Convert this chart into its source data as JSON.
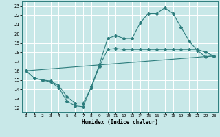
{
  "title": "",
  "xlabel": "Humidex (Indice chaleur)",
  "bg_color": "#c8e8e8",
  "line_color": "#2d7d7d",
  "grid_color": "#ffffff",
  "xlim": [
    -0.5,
    23.5
  ],
  "ylim": [
    11.5,
    23.5
  ],
  "xticks": [
    0,
    1,
    2,
    3,
    4,
    5,
    6,
    7,
    8,
    9,
    10,
    11,
    12,
    13,
    14,
    15,
    16,
    17,
    18,
    19,
    20,
    21,
    22,
    23
  ],
  "yticks": [
    12,
    13,
    14,
    15,
    16,
    17,
    18,
    19,
    20,
    21,
    22,
    23
  ],
  "line1_x": [
    0,
    1,
    2,
    3,
    4,
    5,
    6,
    7,
    8,
    9,
    10,
    11,
    12,
    13,
    14,
    15,
    16,
    17,
    18,
    19,
    20,
    21,
    22,
    23
  ],
  "line1_y": [
    16,
    15.2,
    15,
    14.8,
    14.2,
    12.7,
    12.2,
    12.1,
    14.3,
    16.7,
    19.5,
    19.8,
    19.5,
    19.5,
    21.2,
    22.2,
    22.2,
    22.8,
    22.2,
    20.7,
    19.2,
    18.2,
    17.5,
    17.6
  ],
  "line2_x": [
    0,
    1,
    2,
    3,
    4,
    5,
    6,
    7,
    8,
    9,
    10,
    11,
    12,
    13,
    14,
    15,
    16,
    17,
    18,
    19,
    20,
    21,
    22,
    23
  ],
  "line2_y": [
    16,
    15.2,
    15,
    14.9,
    14.4,
    13.2,
    12.5,
    12.5,
    14.2,
    16.5,
    18.3,
    18.4,
    18.3,
    18.3,
    18.3,
    18.3,
    18.3,
    18.3,
    18.3,
    18.3,
    18.3,
    18.3,
    18.0,
    17.6
  ],
  "line3_x": [
    0,
    23
  ],
  "line3_y": [
    16,
    17.6
  ]
}
